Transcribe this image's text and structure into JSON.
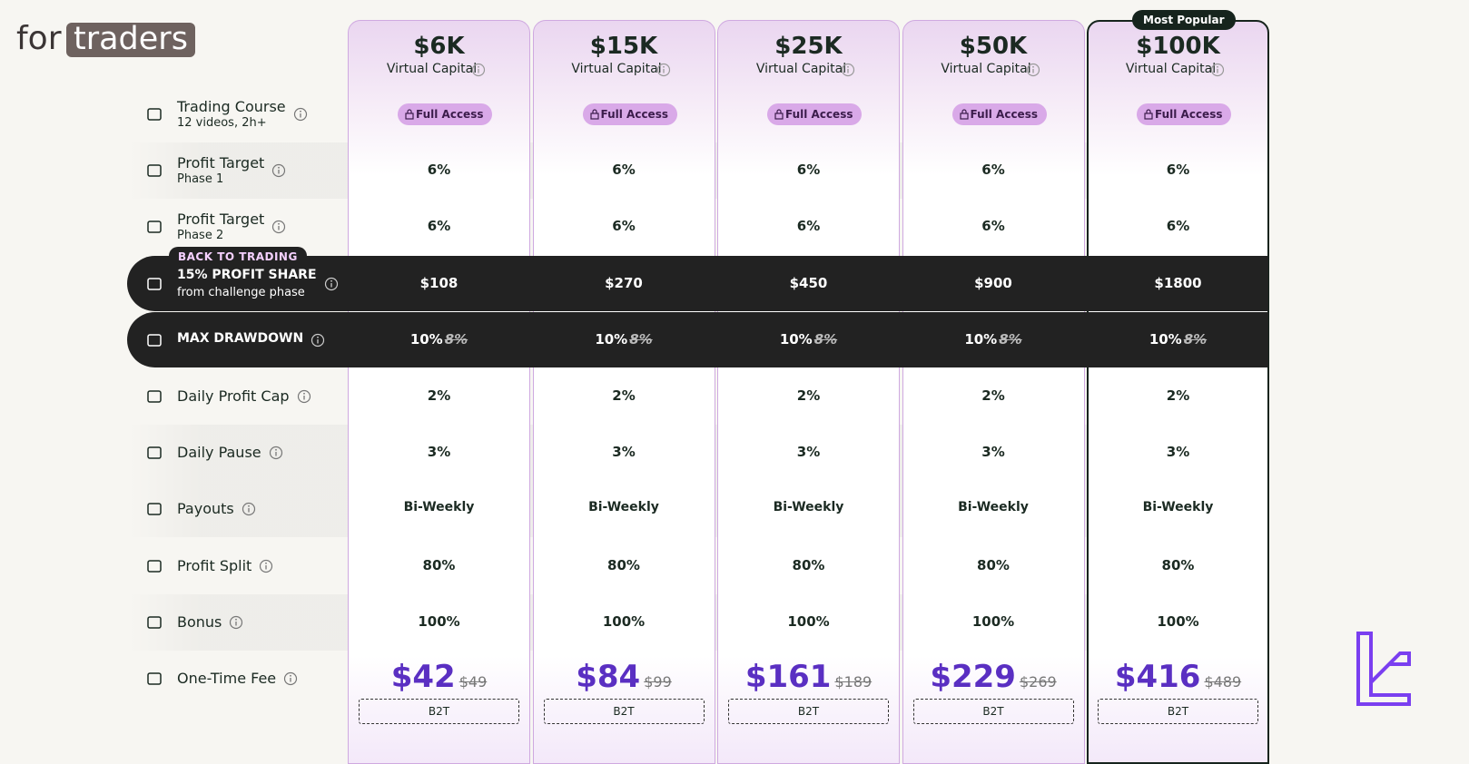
{
  "brand": {
    "prefix": "for",
    "name": "traders"
  },
  "popular_badge": "Most Popular",
  "promo_badge": "BACK TO TRADING",
  "plans": [
    {
      "capital": "$6K",
      "capital_label": "Virtual Capital",
      "fee": "$42",
      "old_fee": "$49",
      "code": "B2T"
    },
    {
      "capital": "$15K",
      "capital_label": "Virtual Capital",
      "fee": "$84",
      "old_fee": "$99",
      "code": "B2T"
    },
    {
      "capital": "$25K",
      "capital_label": "Virtual Capital",
      "fee": "$161",
      "old_fee": "$189",
      "code": "B2T"
    },
    {
      "capital": "$50K",
      "capital_label": "Virtual Capital",
      "fee": "$229",
      "old_fee": "$269",
      "code": "B2T"
    },
    {
      "capital": "$100K",
      "capital_label": "Virtual Capital",
      "fee": "$416",
      "old_fee": "$489",
      "code": "B2T"
    }
  ],
  "rows": [
    {
      "label": "Trading Course",
      "sublabel": "12 videos, 2h+",
      "cells": [
        "Full Access",
        "Full Access",
        "Full Access",
        "Full Access",
        "Full Access"
      ]
    },
    {
      "label": "Profit Target",
      "sublabel": "Phase 1",
      "cells": [
        "6%",
        "6%",
        "6%",
        "6%",
        "6%"
      ]
    },
    {
      "label": "Profit Target",
      "sublabel": "Phase 2",
      "cells": [
        "6%",
        "6%",
        "6%",
        "6%",
        "6%"
      ]
    },
    {
      "label": "15% PROFIT SHARE",
      "sublabel": "from challenge phase",
      "cells": [
        "$108",
        "$270",
        "$450",
        "$900",
        "$1800"
      ]
    },
    {
      "label": "MAX DRAWDOWN",
      "cells": [
        "10%",
        "10%",
        "10%",
        "10%",
        "10%"
      ],
      "old_cells": [
        "8%",
        "8%",
        "8%",
        "8%",
        "8%"
      ]
    },
    {
      "label": "Daily Profit Cap",
      "cells": [
        "2%",
        "2%",
        "2%",
        "2%",
        "2%"
      ]
    },
    {
      "label": "Daily Pause",
      "cells": [
        "3%",
        "3%",
        "3%",
        "3%",
        "3%"
      ]
    },
    {
      "label": "Payouts",
      "cells": [
        "Bi-Weekly",
        "Bi-Weekly",
        "Bi-Weekly",
        "Bi-Weekly",
        "Bi-Weekly"
      ]
    },
    {
      "label": "Profit Split",
      "cells": [
        "80%",
        "80%",
        "80%",
        "80%",
        "80%"
      ]
    },
    {
      "label": "Bonus",
      "cells": [
        "100%",
        "100%",
        "100%",
        "100%",
        "100%"
      ]
    },
    {
      "label": "One-Time Fee"
    }
  ]
}
